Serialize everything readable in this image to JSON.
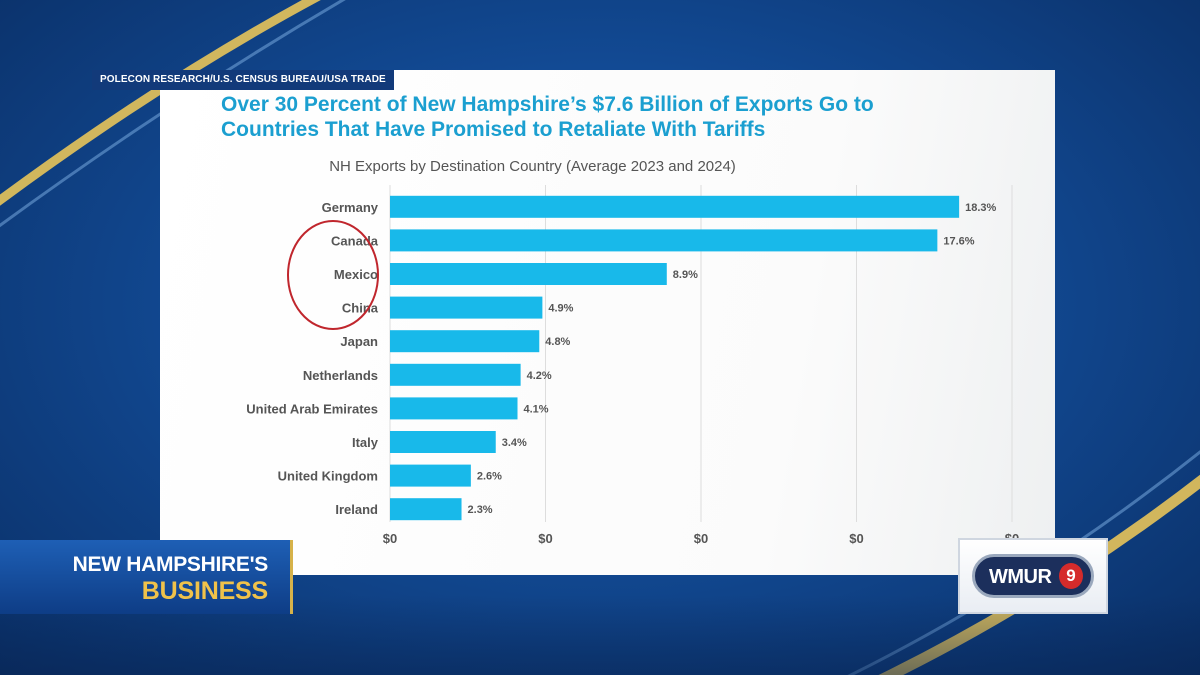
{
  "source_label": "POLECON RESEARCH/U.S. CENSUS BUREAU/USA TRADE",
  "headline_line1": "Over 30 Percent of New Hampshire’s $7.6 Billion of Exports Go to",
  "headline_line2": "Countries That Have Promised to Retaliate With Tariffs",
  "lower_third": {
    "line1": "NEW HAMPSHIRE'S",
    "line2": "BUSINESS"
  },
  "logo": {
    "text": "WMUR",
    "number": "9"
  },
  "colors": {
    "bar": "#18b9ea",
    "headline": "#1b9fd0",
    "circle": "#c0262d",
    "gold": "#d6b24a"
  },
  "chart_data": {
    "type": "bar",
    "orientation": "horizontal",
    "title": "NH Exports by Destination Country (Average 2023 and 2024)",
    "categories": [
      "Germany",
      "Canada",
      "Mexico",
      "China",
      "Japan",
      "Netherlands",
      "United Arab Emirates",
      "Italy",
      "United Kingdom",
      "Ireland"
    ],
    "values": [
      18.3,
      17.6,
      8.9,
      4.9,
      4.8,
      4.2,
      4.1,
      3.4,
      2.6,
      2.3
    ],
    "data_labels": [
      "18.3%",
      "17.6%",
      "8.9%",
      "4.9%",
      "4.8%",
      "4.2%",
      "4.1%",
      "3.4%",
      "2.6%",
      "2.3%"
    ],
    "x_tick_labels": [
      "$0",
      "$0",
      "$0",
      "$0",
      "$0"
    ],
    "xlim": [
      0,
      20
    ],
    "grid": true,
    "highlighted_categories": [
      "Canada",
      "Mexico",
      "China"
    ]
  }
}
